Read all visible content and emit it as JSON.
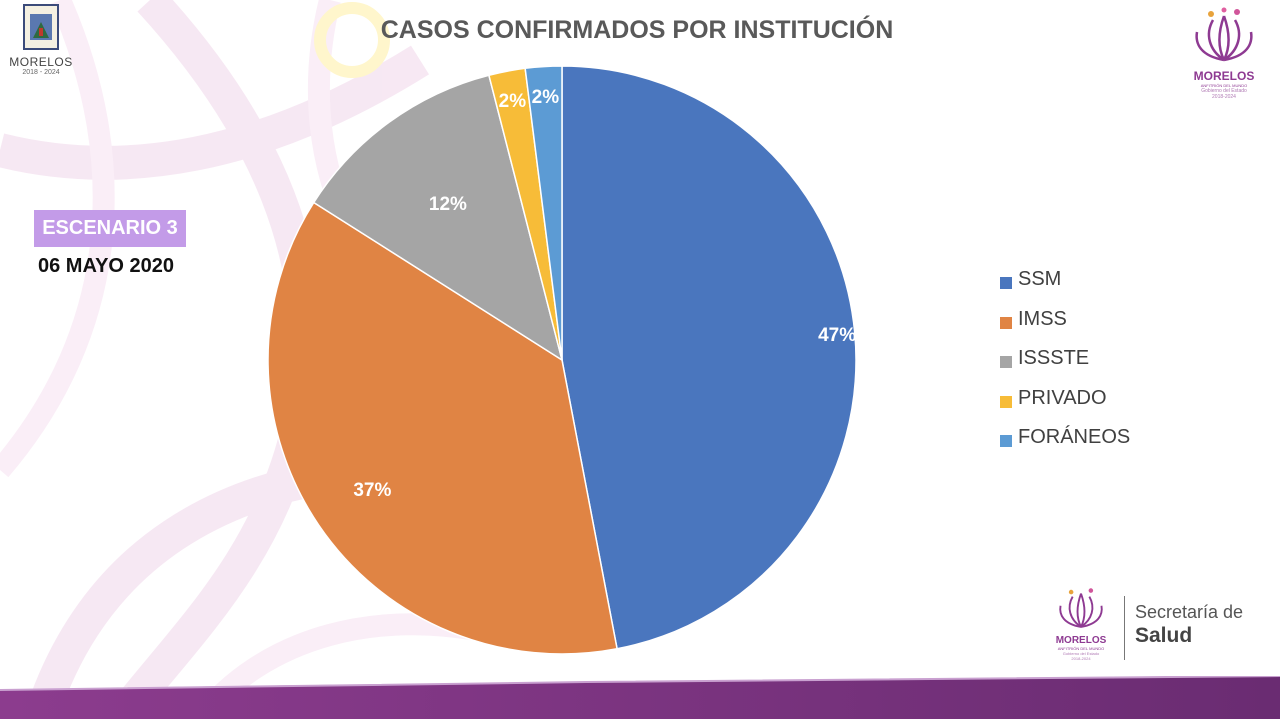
{
  "header": {
    "title": "CASOS CONFIRMADOS POR INSTITUCIÓN"
  },
  "state_logo": {
    "name": "MORELOS",
    "years": "2018 - 2024"
  },
  "badge": {
    "scenario": "ESCENARIO 3",
    "date": "06 MAYO 2020"
  },
  "brand_logo": {
    "name": "MORELOS",
    "tagline": "ANFITRIÓN DEL MUNDO",
    "sub": "Gobierno del Estado",
    "years": "2018-2024"
  },
  "health_logo": {
    "line1": "Secretaría de",
    "line2": "Salud"
  },
  "colors": {
    "badge_bg": "#c39be8",
    "brand_purple": "#8e3a92"
  },
  "chart_data": {
    "type": "pie",
    "title": "CASOS CONFIRMADOS POR INSTITUCIÓN",
    "categories": [
      "SSM",
      "IMSS",
      "ISSSTE",
      "PRIVADO",
      "FORÁNEOS"
    ],
    "values": [
      47,
      37,
      12,
      2,
      2
    ],
    "labels": [
      "47%",
      "37%",
      "12%",
      "2%",
      "2%"
    ],
    "colors": [
      "#4a76be",
      "#e08444",
      "#a5a5a5",
      "#f7bc38",
      "#5c9bd4"
    ],
    "start_angle_deg": 0,
    "direction": "clockwise",
    "legend_position": "right"
  }
}
